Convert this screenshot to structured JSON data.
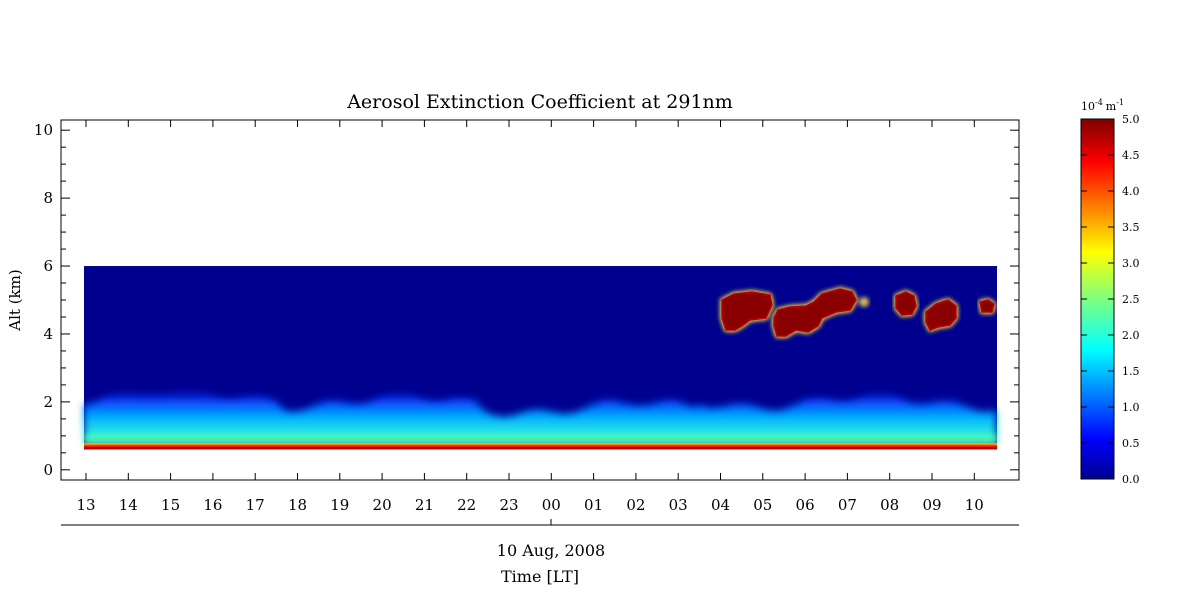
{
  "chart_data": {
    "type": "heatmap",
    "title": "Aerosol Extinction Coefficient at 291nm",
    "ylabel": "Alt (km)",
    "xlabel": "Time [LT]",
    "date_label": "10 Aug, 2008",
    "ylim": [
      -0.3,
      10.3
    ],
    "y_ticks": [
      "0",
      "2",
      "4",
      "6",
      "8",
      "10"
    ],
    "x_tick_labels": [
      "13",
      "14",
      "15",
      "16",
      "17",
      "18",
      "19",
      "20",
      "21",
      "22",
      "23",
      "00",
      "01",
      "02",
      "03",
      "04",
      "05",
      "06",
      "07",
      "08",
      "09",
      "10"
    ],
    "data_extent": {
      "alt_km": [
        0.6,
        6.0
      ]
    },
    "colorbar": {
      "unit_prefix": "10",
      "unit_exponent": "-4",
      "unit_label": "m",
      "unit_label_exponent": "-1",
      "min": 0.0,
      "max": 5.0,
      "tick_labels": [
        "0.0",
        "0.5",
        "1.0",
        "1.5",
        "2.0",
        "2.5",
        "3.0",
        "3.5",
        "4.0",
        "4.5",
        "5.0"
      ],
      "colormap": "jet"
    },
    "features": [
      {
        "name": "surface layer",
        "alt_km": [
          0.6,
          0.75
        ],
        "value": 5.0
      },
      {
        "name": "boundary layer",
        "alt_km": [
          0.75,
          2.0
        ],
        "value_range": [
          1.0,
          3.0
        ]
      },
      {
        "name": "cloud",
        "time": "04-05",
        "alt_km": [
          4.1,
          5.2
        ],
        "value": 5.0
      },
      {
        "name": "cloud",
        "time": "05-07",
        "alt_km": [
          4.0,
          5.3
        ],
        "value": 5.0
      },
      {
        "name": "cloud",
        "time": "08",
        "alt_km": [
          4.7,
          5.1
        ],
        "value": 5.0
      },
      {
        "name": "cloud",
        "time": "09",
        "alt_km": [
          4.1,
          4.9
        ],
        "value": 5.0
      },
      {
        "name": "cloud",
        "time": "10",
        "alt_km": [
          4.7,
          4.9
        ],
        "value": 5.0
      }
    ]
  }
}
